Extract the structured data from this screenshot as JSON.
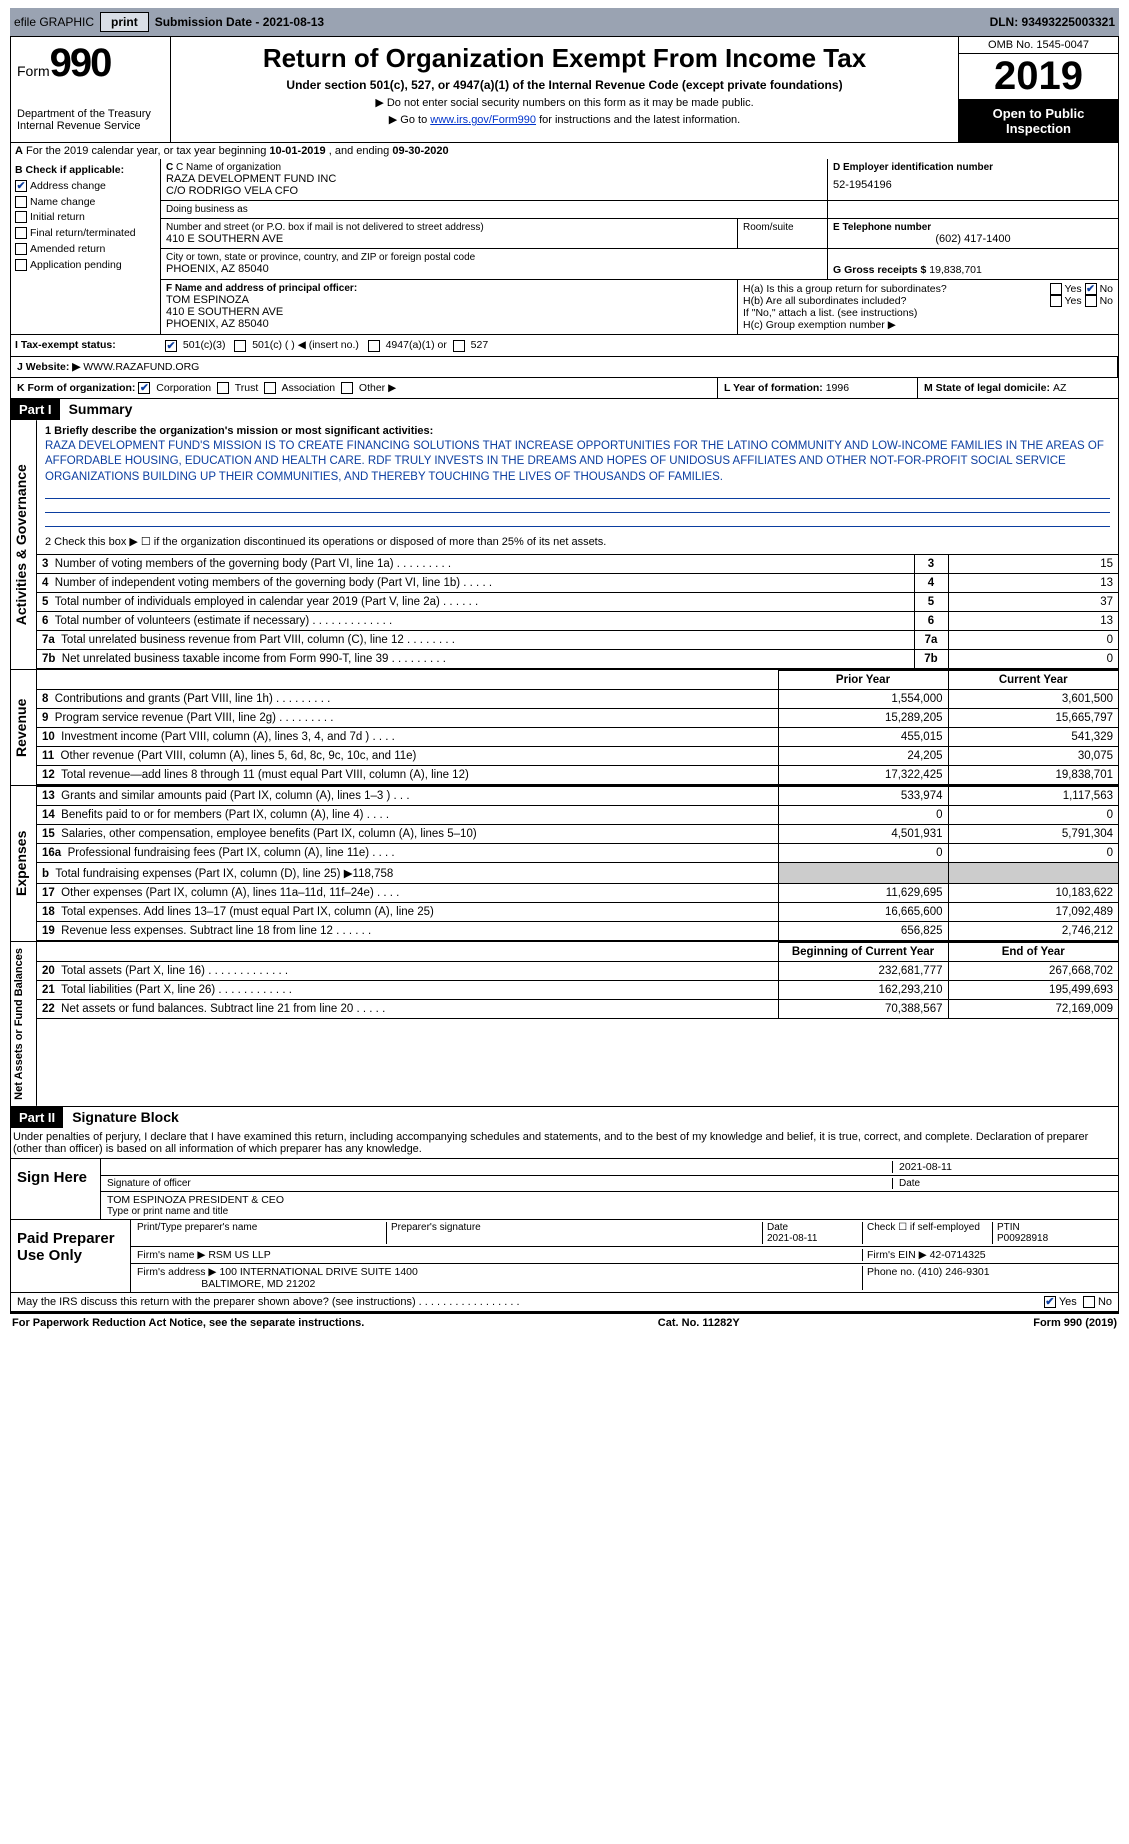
{
  "topbar": {
    "efile": "efile GRAPHIC",
    "print": "print",
    "submission": "Submission Date - 2021-08-13",
    "dln": "DLN: 93493225003321"
  },
  "header": {
    "form": "Form",
    "num": "990",
    "dept": "Department of the Treasury",
    "irs": "Internal Revenue Service",
    "title": "Return of Organization Exempt From Income Tax",
    "sub": "Under section 501(c), 527, or 4947(a)(1) of the Internal Revenue Code (except private foundations)",
    "warn": "▶ Do not enter social security numbers on this form as it may be made public.",
    "goto_pre": "▶ Go to ",
    "goto_link": "www.irs.gov/Form990",
    "goto_post": " for instructions and the latest information.",
    "omb": "OMB No. 1545-0047",
    "year": "2019",
    "open": "Open to Public Inspection"
  },
  "lineA": {
    "pre": "A",
    "txt1": "For the 2019 calendar year, or tax year beginning ",
    "d1": "10-01-2019",
    "txt2": " , and ending ",
    "d2": "09-30-2020"
  },
  "colB": {
    "hdr": "B Check if applicable:",
    "addr": "Address change",
    "name": "Name change",
    "init": "Initial return",
    "final": "Final return/terminated",
    "amend": "Amended return",
    "app": "Application pending"
  },
  "colC": {
    "namelab": "C Name of organization",
    "name": "RAZA DEVELOPMENT FUND INC",
    "co": "C/O RODRIGO VELA CFO",
    "dba": "Doing business as",
    "addrlab": "Number and street (or P.O. box if mail is not delivered to street address)",
    "addr": "410 E SOUTHERN AVE",
    "room": "Room/suite",
    "citylab": "City or town, state or province, country, and ZIP or foreign postal code",
    "city": "PHOENIX, AZ  85040"
  },
  "colD": {
    "lab": "D Employer identification number",
    "val": "52-1954196",
    "telab": "E Telephone number",
    "tel": "(602) 417-1400",
    "grlab": "G Gross receipts $ ",
    "gr": "19,838,701"
  },
  "colF": {
    "lab": "F Name and address of principal officer:",
    "name": "TOM ESPINOZA",
    "addr": "410 E SOUTHERN AVE",
    "city": "PHOENIX, AZ  85040"
  },
  "colH": {
    "a": "H(a)  Is this a group return for subordinates?",
    "b": "H(b)  Are all subordinates included?",
    "ifno": "If \"No,\" attach a list. (see instructions)",
    "c": "H(c)  Group exemption number ▶",
    "yes": "Yes",
    "no": "No"
  },
  "secI": {
    "lab": "I  Tax-exempt status:",
    "c3": "501(c)(3)",
    "c": "501(c) (   ) ◀ (insert no.)",
    "a1": "4947(a)(1) or",
    "s527": "527"
  },
  "secJ": {
    "lab": "J  Website: ▶",
    "val": "WWW.RAZAFUND.ORG"
  },
  "secK": {
    "lab": "K Form of organization:",
    "corp": "Corporation",
    "trust": "Trust",
    "assoc": "Association",
    "other": "Other ▶"
  },
  "secL": {
    "lab": "L Year of formation: ",
    "val": "1996"
  },
  "secM": {
    "lab": "M State of legal domicile: ",
    "val": "AZ"
  },
  "part1": {
    "num": "Part I",
    "title": "Summary",
    "q1": "1  Briefly describe the organization's mission or most significant activities:",
    "mission": "RAZA DEVELOPMENT FUND'S MISSION IS TO CREATE FINANCING SOLUTIONS THAT INCREASE OPPORTUNITIES FOR THE LATINO COMMUNITY AND LOW-INCOME FAMILIES IN THE AREAS OF AFFORDABLE HOUSING, EDUCATION AND HEALTH CARE. RDF TRULY INVESTS IN THE DREAMS AND HOPES OF UNIDOSUS AFFILIATES AND OTHER NOT-FOR-PROFIT SOCIAL SERVICE ORGANIZATIONS BUILDING UP THEIR COMMUNITIES, AND THEREBY TOUCHING THE LIVES OF THOUSANDS OF FAMILIES.",
    "q2": "2  Check this box ▶ ☐ if the organization discontinued its operations or disposed of more than 25% of its net assets.",
    "vtab1": "Activities & Governance",
    "vtab2": "Revenue",
    "vtab3": "Expenses",
    "vtab4": "Net Assets or Fund Balances",
    "py": "Prior Year",
    "cy": "Current Year",
    "bcy": "Beginning of Current Year",
    "eoy": "End of Year"
  },
  "rows_gov": [
    {
      "n": "3",
      "d": "Number of voting members of the governing body (Part VI, line 1a)  .   .   .   .   .   .   .   .   .",
      "v": "15"
    },
    {
      "n": "4",
      "d": "Number of independent voting members of the governing body (Part VI, line 1b)  .   .   .   .   .",
      "v": "13"
    },
    {
      "n": "5",
      "d": "Total number of individuals employed in calendar year 2019 (Part V, line 2a)  .   .   .   .   .   .",
      "v": "37"
    },
    {
      "n": "6",
      "d": "Total number of volunteers (estimate if necessary)  .   .   .   .   .   .   .   .   .   .   .   .   .",
      "v": "13"
    },
    {
      "n": "7a",
      "d": "Total unrelated business revenue from Part VIII, column (C), line 12  .   .   .   .   .   .   .   .",
      "v": "0"
    },
    {
      "n": "7b",
      "d": "Net unrelated business taxable income from Form 990-T, line 39  .   .   .   .   .   .   .   .   .",
      "v": "0"
    }
  ],
  "rows_rev": [
    {
      "n": "8",
      "d": "Contributions and grants (Part VIII, line 1h)  .   .   .   .   .   .   .   .   .",
      "p": "1,554,000",
      "c": "3,601,500"
    },
    {
      "n": "9",
      "d": "Program service revenue (Part VIII, line 2g)  .   .   .   .   .   .   .   .   .",
      "p": "15,289,205",
      "c": "15,665,797"
    },
    {
      "n": "10",
      "d": "Investment income (Part VIII, column (A), lines 3, 4, and 7d )  .   .   .   .",
      "p": "455,015",
      "c": "541,329"
    },
    {
      "n": "11",
      "d": "Other revenue (Part VIII, column (A), lines 5, 6d, 8c, 9c, 10c, and 11e)",
      "p": "24,205",
      "c": "30,075"
    },
    {
      "n": "12",
      "d": "Total revenue—add lines 8 through 11 (must equal Part VIII, column (A), line 12)",
      "p": "17,322,425",
      "c": "19,838,701"
    }
  ],
  "rows_exp": [
    {
      "n": "13",
      "d": "Grants and similar amounts paid (Part IX, column (A), lines 1–3 )  .   .   .",
      "p": "533,974",
      "c": "1,117,563"
    },
    {
      "n": "14",
      "d": "Benefits paid to or for members (Part IX, column (A), line 4)   .   .   .   .",
      "p": "0",
      "c": "0"
    },
    {
      "n": "15",
      "d": "Salaries, other compensation, employee benefits (Part IX, column (A), lines 5–10)",
      "p": "4,501,931",
      "c": "5,791,304"
    },
    {
      "n": "16a",
      "d": "Professional fundraising fees (Part IX, column (A), line 11e)  .   .   .   .",
      "p": "0",
      "c": "0"
    },
    {
      "n": "b",
      "d": "Total fundraising expenses (Part IX, column (D), line 25) ▶118,758",
      "p": "",
      "c": ""
    },
    {
      "n": "17",
      "d": "Other expenses (Part IX, column (A), lines 11a–11d, 11f–24e)  .   .   .   .",
      "p": "11,629,695",
      "c": "10,183,622"
    },
    {
      "n": "18",
      "d": "Total expenses. Add lines 13–17 (must equal Part IX, column (A), line 25)",
      "p": "16,665,600",
      "c": "17,092,489"
    },
    {
      "n": "19",
      "d": "Revenue less expenses. Subtract line 18 from line 12  .   .   .   .   .   .",
      "p": "656,825",
      "c": "2,746,212"
    }
  ],
  "rows_na": [
    {
      "n": "20",
      "d": "Total assets (Part X, line 16)  .   .   .   .   .   .   .   .   .   .   .   .   .",
      "p": "232,681,777",
      "c": "267,668,702"
    },
    {
      "n": "21",
      "d": "Total liabilities (Part X, line 26)  .   .   .   .   .   .   .   .   .   .   .   .",
      "p": "162,293,210",
      "c": "195,499,693"
    },
    {
      "n": "22",
      "d": "Net assets or fund balances. Subtract line 21 from line 20  .   .   .   .   .",
      "p": "70,388,567",
      "c": "72,169,009"
    }
  ],
  "part2": {
    "num": "Part II",
    "title": "Signature Block",
    "penalty": "Under penalties of perjury, I declare that I have examined this return, including accompanying schedules and statements, and to the best of my knowledge and belief, it is true, correct, and complete. Declaration of preparer (other than officer) is based on all information of which preparer has any knowledge.",
    "sign": "Sign Here",
    "sigoff": "Signature of officer",
    "date": "Date",
    "d1": "2021-08-11",
    "name": "TOM ESPINOZA PRESIDENT & CEO",
    "nametype": "Type or print name and title",
    "paid": "Paid Preparer Use Only",
    "prepname": "Print/Type preparer's name",
    "prepsig": "Preparer's signature",
    "d2": "2021-08-11",
    "checkif": "Check ☐ if self-employed",
    "ptin": "PTIN",
    "ptinval": "P00928918",
    "firmname": "Firm's name   ▶ ",
    "firm": "RSM US LLP",
    "firmein": "Firm's EIN ▶ ",
    "ein": "42-0714325",
    "firmaddr": "Firm's address ▶ ",
    "addr": "100 INTERNATIONAL DRIVE SUITE 1400",
    "addr2": "BALTIMORE, MD  21202",
    "phone": "Phone no. ",
    "phoneval": "(410) 246-9301",
    "may": "May the IRS discuss this return with the preparer shown above? (see instructions)  .   .   .   .   .   .   .   .   .   .   .   .   .   .   .   .   .",
    "yes": "Yes",
    "no": "No"
  },
  "footer": {
    "pra": "For Paperwork Reduction Act Notice, see the separate instructions.",
    "cat": "Cat. No. 11282Y",
    "form": "Form 990 (2019)"
  }
}
